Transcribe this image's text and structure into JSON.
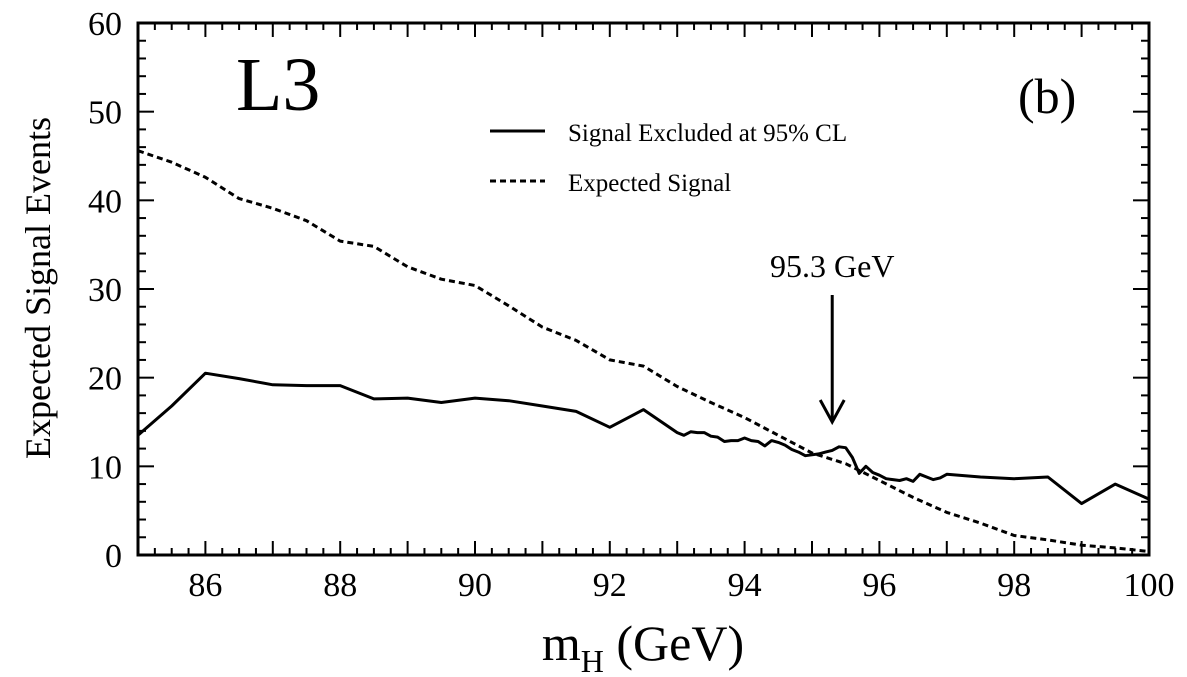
{
  "chart_data": {
    "type": "line",
    "experiment_label": "L3",
    "panel_label": "(b)",
    "xlabel_main": "m",
    "xlabel_sub": "H",
    "xlabel_unit": "(GeV)",
    "ylabel": "Expected Signal Events",
    "xlim": [
      85,
      100
    ],
    "ylim": [
      0,
      60
    ],
    "x_ticks": [
      86,
      88,
      90,
      92,
      94,
      96,
      98,
      100
    ],
    "y_ticks": [
      0,
      10,
      20,
      30,
      40,
      50,
      60
    ],
    "grid": false,
    "legend_position": "top-center",
    "series": [
      {
        "name": "Signal Excluded at 95% CL",
        "style": "solid",
        "x": [
          85,
          85.5,
          86,
          86.5,
          87,
          87.5,
          88,
          88.5,
          89,
          89.5,
          90,
          90.5,
          91,
          91.5,
          92,
          92.5,
          93,
          93.1,
          93.2,
          93.3,
          93.4,
          93.5,
          93.6,
          93.7,
          93.8,
          93.9,
          94,
          94.1,
          94.2,
          94.3,
          94.4,
          94.5,
          94.6,
          94.7,
          94.8,
          94.9,
          95,
          95.1,
          95.2,
          95.3,
          95.4,
          95.5,
          95.6,
          95.7,
          95.8,
          95.9,
          96,
          96.1,
          96.2,
          96.3,
          96.4,
          96.5,
          96.6,
          96.7,
          96.8,
          96.9,
          97,
          97.5,
          98,
          98.5,
          99,
          99.5,
          100
        ],
        "values": [
          13.5,
          16.8,
          20.5,
          19.9,
          19.2,
          19.1,
          19.1,
          17.6,
          17.7,
          17.2,
          17.7,
          17.4,
          16.8,
          16.2,
          14.4,
          16.4,
          13.8,
          13.5,
          13.9,
          13.8,
          13.8,
          13.4,
          13.3,
          12.8,
          12.9,
          12.9,
          13.2,
          12.9,
          12.8,
          12.3,
          12.9,
          12.7,
          12.4,
          11.9,
          11.6,
          11.2,
          11.3,
          11.4,
          11.6,
          11.8,
          12.2,
          12.1,
          11.0,
          9.2,
          10.0,
          9.3,
          9.0,
          8.6,
          8.5,
          8.4,
          8.6,
          8.3,
          9.1,
          8.8,
          8.5,
          8.7,
          9.1,
          8.8,
          8.6,
          8.8,
          5.8,
          8.0,
          6.3
        ],
        "color": "#000000"
      },
      {
        "name": "Expected Signal",
        "style": "dashed",
        "x": [
          85,
          85.5,
          86,
          86.5,
          87,
          87.5,
          88,
          88.5,
          89,
          89.5,
          90,
          90.5,
          91,
          91.5,
          92,
          92.5,
          93,
          93.5,
          94,
          94.5,
          95,
          95.5,
          96,
          96.5,
          97,
          97.5,
          98,
          98.5,
          99,
          99.5,
          100
        ],
        "values": [
          45.6,
          44.3,
          42.6,
          40.2,
          39.1,
          37.7,
          35.4,
          34.8,
          32.5,
          31.1,
          30.4,
          28.1,
          25.7,
          24.2,
          22.0,
          21.3,
          19.0,
          17.2,
          15.5,
          13.5,
          11.5,
          10.3,
          8.4,
          6.5,
          4.8,
          3.6,
          2.2,
          1.7,
          1.1,
          0.8,
          0.4
        ],
        "color": "#000000"
      }
    ],
    "annotation": {
      "text": "95.3 GeV",
      "x": 95.3,
      "arrow_from_y": 30.0,
      "arrow_to_y": 15.0
    }
  }
}
